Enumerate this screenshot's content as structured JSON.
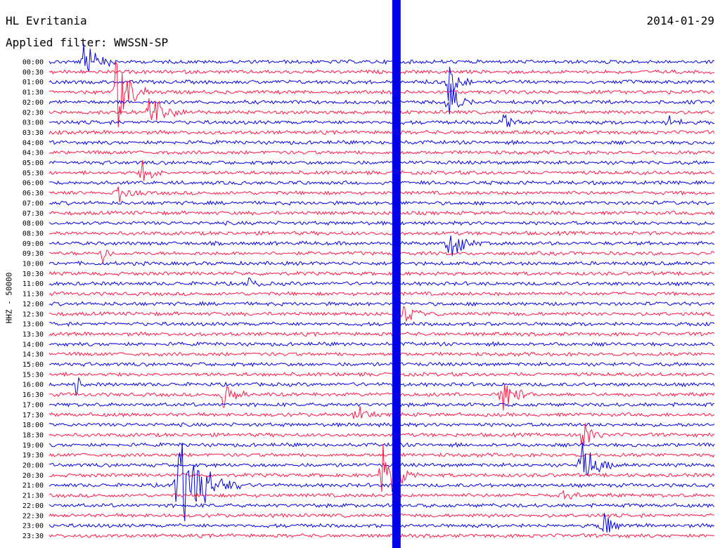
{
  "header": {
    "station": "HL Evritania",
    "date": "2014-01-29",
    "filter": "Applied filter: WWSSN-SP",
    "ylabel": "HHZ - 50000"
  },
  "colors": {
    "trace_a": "#0000e6",
    "trace_b": "#ff1744",
    "background": "#ffffff",
    "text": "#000000"
  },
  "chart_data": {
    "type": "line",
    "title": "HL Evritania",
    "ylabel": "HHZ - 50000",
    "time_labels": [
      "00:00",
      "00:30",
      "01:00",
      "01:30",
      "02:00",
      "02:30",
      "03:00",
      "03:30",
      "04:00",
      "04:30",
      "05:00",
      "05:30",
      "06:00",
      "06:30",
      "07:00",
      "07:30",
      "08:00",
      "08:30",
      "09:00",
      "09:30",
      "10:00",
      "10:30",
      "11:00",
      "11:30",
      "12:00",
      "12:30",
      "13:00",
      "13:30",
      "14:00",
      "14:30",
      "15:00",
      "15:30",
      "16:00",
      "16:30",
      "17:00",
      "17:30",
      "18:00",
      "18:30",
      "19:00",
      "19:30",
      "20:00",
      "20:30",
      "21:00",
      "21:30",
      "22:00",
      "22:30",
      "23:00",
      "23:30"
    ],
    "series": [
      {
        "values": "alternating rows: even rows blue, odd rows red"
      }
    ],
    "events": [
      {
        "row": 0,
        "x": 0.05,
        "amp": 40,
        "dur": 0.05
      },
      {
        "row": 2,
        "x": 0.6,
        "amp": 30,
        "dur": 0.04
      },
      {
        "row": 3,
        "x": 0.1,
        "amp": 75,
        "dur": 0.05
      },
      {
        "row": 4,
        "x": 0.6,
        "amp": 35,
        "dur": 0.04
      },
      {
        "row": 5,
        "x": 0.15,
        "amp": 30,
        "dur": 0.06
      },
      {
        "row": 6,
        "x": 0.68,
        "amp": 25,
        "dur": 0.03
      },
      {
        "row": 6,
        "x": 0.93,
        "amp": 15,
        "dur": 0.03
      },
      {
        "row": 11,
        "x": 0.14,
        "amp": 25,
        "dur": 0.03
      },
      {
        "row": 13,
        "x": 0.1,
        "amp": 20,
        "dur": 0.04
      },
      {
        "row": 18,
        "x": 0.6,
        "amp": 40,
        "dur": 0.05
      },
      {
        "row": 19,
        "x": 0.08,
        "amp": 30,
        "dur": 0.02
      },
      {
        "row": 22,
        "x": 0.3,
        "amp": 15,
        "dur": 0.03
      },
      {
        "row": 25,
        "x": 0.53,
        "amp": 20,
        "dur": 0.04
      },
      {
        "row": 32,
        "x": 0.04,
        "amp": 20,
        "dur": 0.02
      },
      {
        "row": 33,
        "x": 0.26,
        "amp": 35,
        "dur": 0.04
      },
      {
        "row": 33,
        "x": 0.68,
        "amp": 40,
        "dur": 0.05
      },
      {
        "row": 35,
        "x": 0.46,
        "amp": 25,
        "dur": 0.03
      },
      {
        "row": 37,
        "x": 0.8,
        "amp": 25,
        "dur": 0.04
      },
      {
        "row": 40,
        "x": 0.8,
        "amp": 45,
        "dur": 0.05
      },
      {
        "row": 41,
        "x": 0.5,
        "amp": 60,
        "dur": 0.06
      },
      {
        "row": 42,
        "x": 0.19,
        "amp": 90,
        "dur": 0.1
      },
      {
        "row": 43,
        "x": 0.77,
        "amp": 20,
        "dur": 0.03
      },
      {
        "row": 46,
        "x": 0.83,
        "amp": 35,
        "dur": 0.03
      }
    ],
    "main_event": {
      "start_row": 0,
      "end_row": 47,
      "x": 0.522
    }
  }
}
